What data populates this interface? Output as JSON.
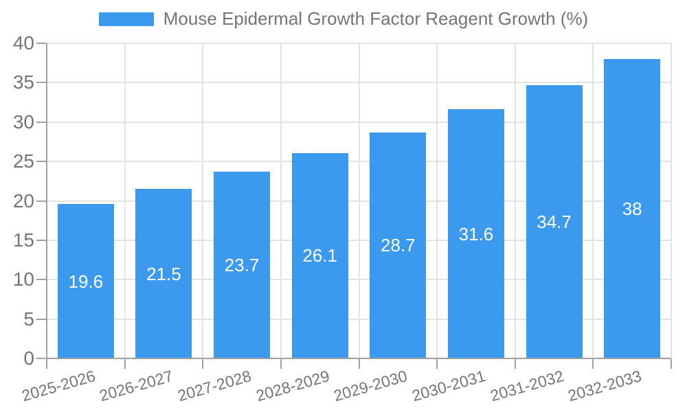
{
  "legend": {
    "label": "Mouse Epidermal Growth Factor Reagent Growth (%)"
  },
  "chart_data": {
    "type": "bar",
    "title": "Mouse Epidermal Growth Factor Reagent Growth (%)",
    "categories": [
      "2025-2026",
      "2026-2027",
      "2027-2028",
      "2028-2029",
      "2029-2030",
      "2030-2031",
      "2031-2032",
      "2032-2033"
    ],
    "values": [
      19.6,
      21.5,
      23.7,
      26.1,
      28.7,
      31.6,
      34.7,
      38
    ],
    "value_labels": [
      "19.6",
      "21.5",
      "23.7",
      "26.1",
      "28.7",
      "31.6",
      "34.7",
      "38"
    ],
    "xlabel": "",
    "ylabel": "",
    "ylim": [
      0,
      40
    ],
    "ytick_step": 5,
    "ytick_labels": [
      "0",
      "5",
      "10",
      "15",
      "20",
      "25",
      "30",
      "35",
      "40"
    ],
    "grid": true,
    "legend_position": "top-center",
    "colors": {
      "bar": "#3b99ee",
      "value_text": "#ffffff",
      "grid": "#e3e3e3",
      "axis": "#a0a0a0",
      "tick_text": "#757575",
      "legend_text": "#757575",
      "background": "#ffffff"
    }
  }
}
